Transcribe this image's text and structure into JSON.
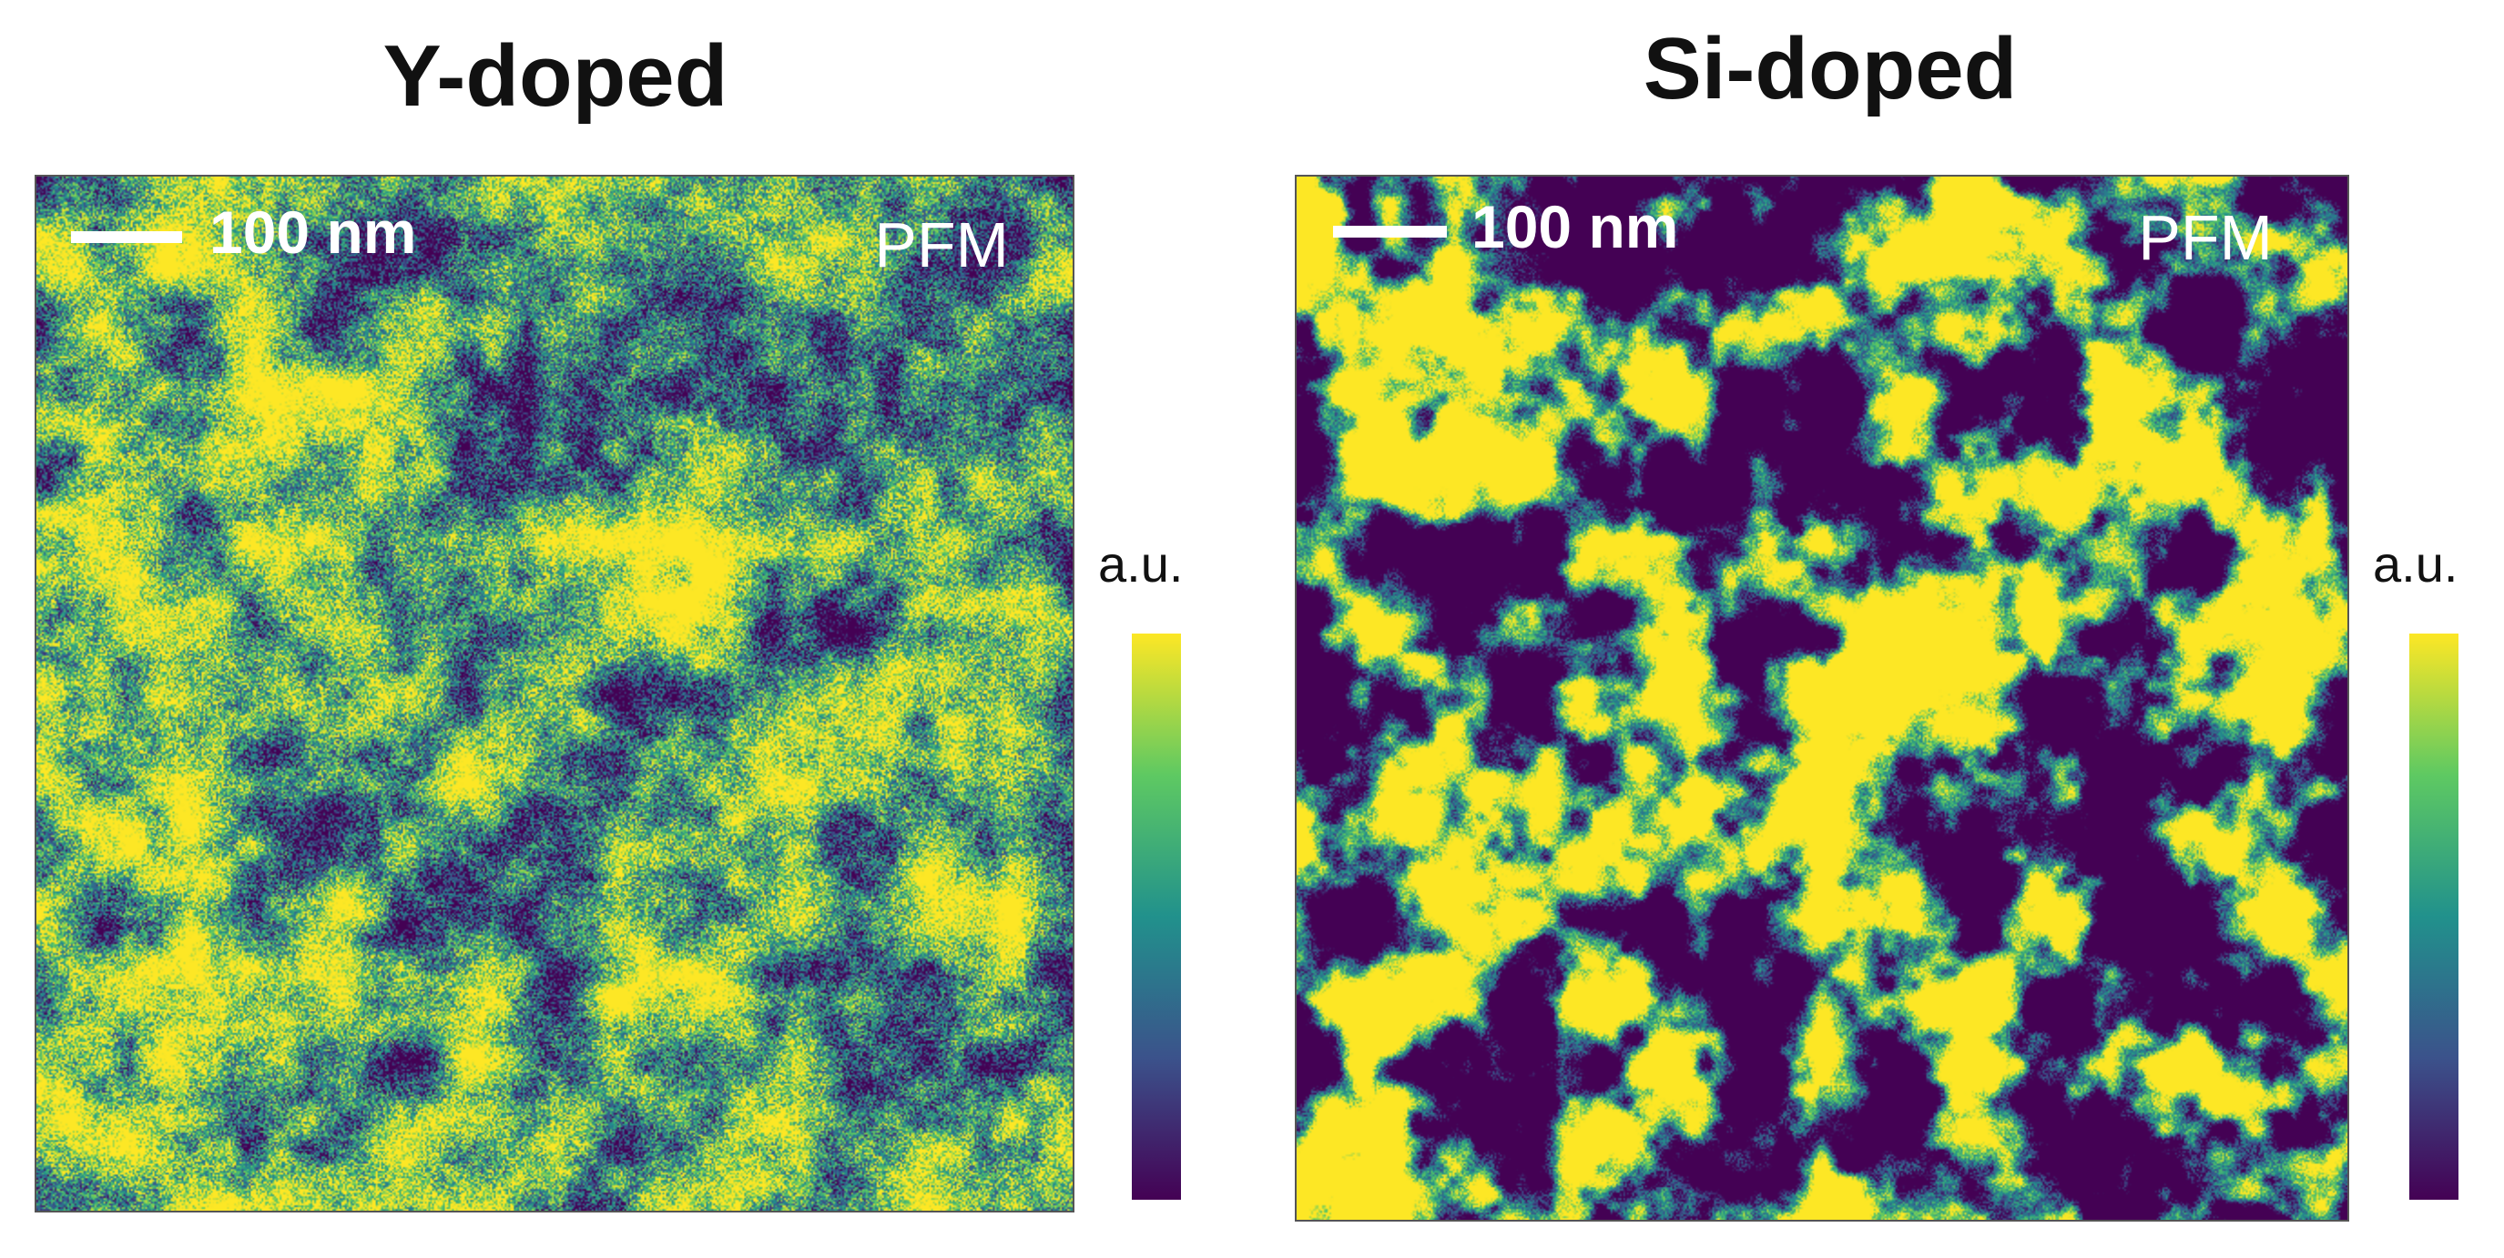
{
  "panels": [
    {
      "title": "Y-doped",
      "scale_bar_label": "100 nm",
      "mode_label": "PFM",
      "colorbar_unit": "a.u."
    },
    {
      "title": "Si-doped",
      "scale_bar_label": "100 nm",
      "mode_label": "PFM",
      "colorbar_unit": "a.u."
    }
  ],
  "colormap": {
    "name": "viridis",
    "stops": [
      "#440154",
      "#3b528b",
      "#21918c",
      "#5ec962",
      "#fde725"
    ]
  }
}
